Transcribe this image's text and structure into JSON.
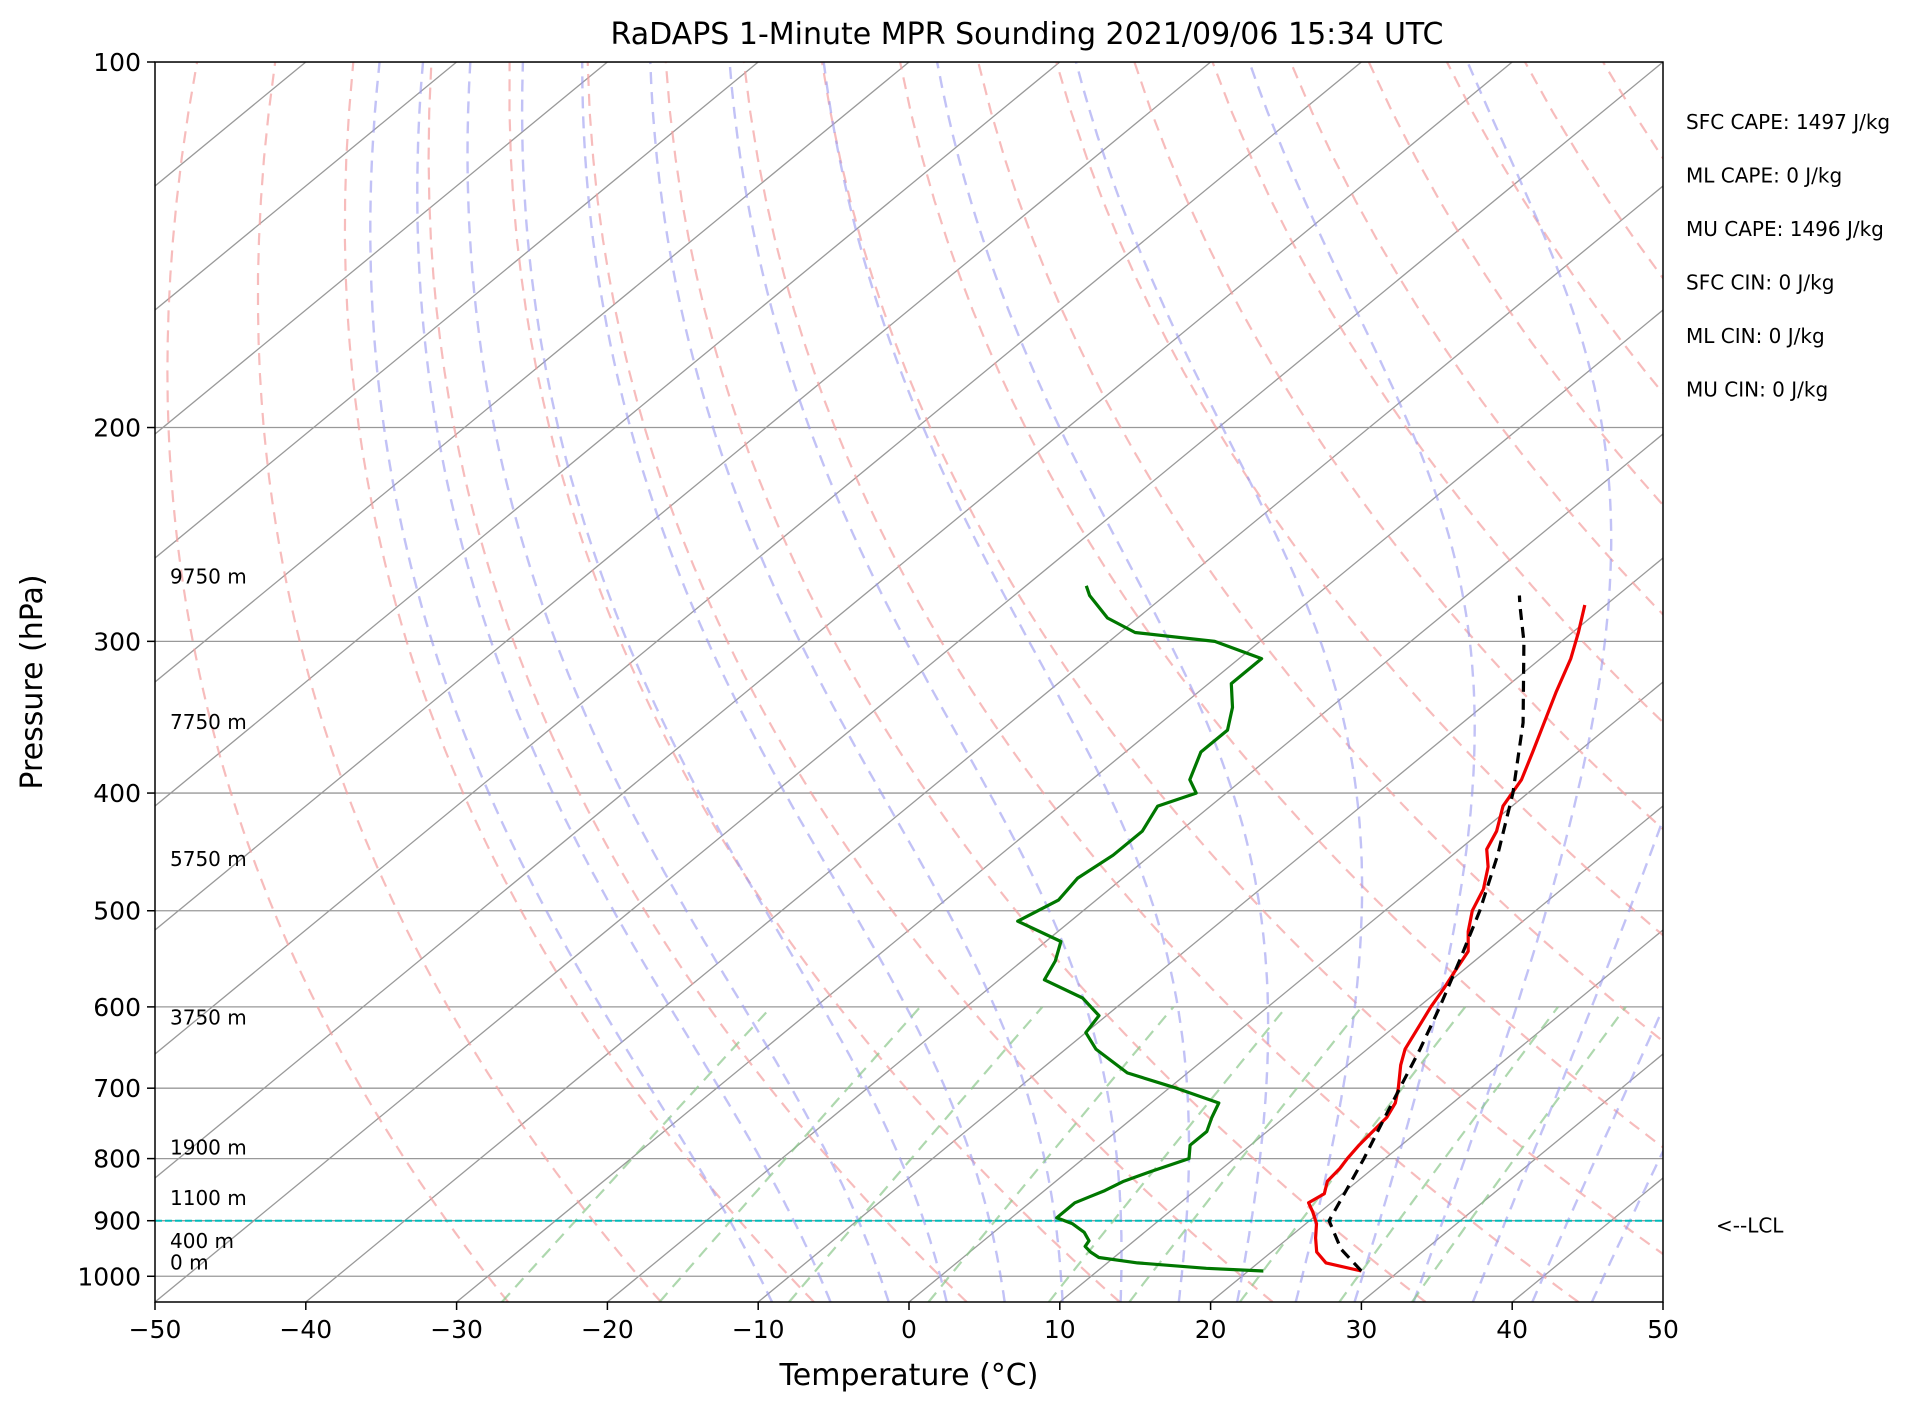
{
  "chart_data": {
    "type": "line",
    "title": "RaDAPS 1-Minute MPR Sounding 2021/09/06 15:34 UTC",
    "xlabel": "Temperature (°C)",
    "ylabel": "Pressure (hPa)",
    "xlim": [
      -50,
      50
    ],
    "ylim": [
      1050,
      100
    ],
    "y_scale": "log",
    "x_ticks": [
      "−50",
      "−40",
      "−30",
      "−20",
      "−10",
      "0",
      "10",
      "20",
      "30",
      "40",
      "50"
    ],
    "y_ticks": [
      "100",
      "200",
      "300",
      "400",
      "500",
      "600",
      "700",
      "800",
      "900",
      "1000"
    ],
    "grid": true,
    "skew_lines_color": "#999999",
    "dry_adiabat_color": "#f4a0a0",
    "moist_adiabat_color": "#9a9af0",
    "mixing_ratio_color": "#8cc88c",
    "series": [
      {
        "color": "#ee0000",
        "points": [
          {
            "p": 990,
            "t": 27.5
          },
          {
            "p": 975,
            "t": 24.5
          },
          {
            "p": 955,
            "t": 23.0
          },
          {
            "p": 930,
            "t": 21.8
          },
          {
            "p": 905,
            "t": 20.7
          },
          {
            "p": 885,
            "t": 19.5
          },
          {
            "p": 870,
            "t": 18.5
          },
          {
            "p": 855,
            "t": 18.8
          },
          {
            "p": 835,
            "t": 18.0
          },
          {
            "p": 815,
            "t": 17.8
          },
          {
            "p": 800,
            "t": 17.5
          },
          {
            "p": 780,
            "t": 17.2
          },
          {
            "p": 760,
            "t": 17.0
          },
          {
            "p": 740,
            "t": 16.8
          },
          {
            "p": 720,
            "t": 16.2
          },
          {
            "p": 700,
            "t": 15.2
          },
          {
            "p": 670,
            "t": 13.5
          },
          {
            "p": 650,
            "t": 12.5
          },
          {
            "p": 620,
            "t": 11.5
          },
          {
            "p": 600,
            "t": 10.8
          },
          {
            "p": 580,
            "t": 10.2
          },
          {
            "p": 560,
            "t": 9.5
          },
          {
            "p": 540,
            "t": 8.8
          },
          {
            "p": 520,
            "t": 7.2
          },
          {
            "p": 500,
            "t": 5.8
          },
          {
            "p": 480,
            "t": 4.8
          },
          {
            "p": 460,
            "t": 3.3
          },
          {
            "p": 445,
            "t": 1.8
          },
          {
            "p": 430,
            "t": 1.0
          },
          {
            "p": 410,
            "t": -0.6
          },
          {
            "p": 390,
            "t": -1.5
          },
          {
            "p": 370,
            "t": -3.0
          },
          {
            "p": 350,
            "t": -4.6
          },
          {
            "p": 330,
            "t": -6.3
          },
          {
            "p": 310,
            "t": -8.0
          },
          {
            "p": 295,
            "t": -9.6
          },
          {
            "p": 280,
            "t": -11.4
          }
        ]
      },
      {
        "color": "#007700",
        "points": [
          {
            "p": 990,
            "t": 21.0
          },
          {
            "p": 985,
            "t": 17.0
          },
          {
            "p": 975,
            "t": 12.0
          },
          {
            "p": 965,
            "t": 9.0
          },
          {
            "p": 955,
            "t": 8.0
          },
          {
            "p": 945,
            "t": 7.2
          },
          {
            "p": 935,
            "t": 7.0
          },
          {
            "p": 920,
            "t": 6.0
          },
          {
            "p": 905,
            "t": 4.5
          },
          {
            "p": 895,
            "t": 3.0
          },
          {
            "p": 880,
            "t": 3.0
          },
          {
            "p": 870,
            "t": 3.0
          },
          {
            "p": 860,
            "t": 3.5
          },
          {
            "p": 850,
            "t": 4.0
          },
          {
            "p": 835,
            "t": 4.5
          },
          {
            "p": 820,
            "t": 5.5
          },
          {
            "p": 800,
            "t": 7.0
          },
          {
            "p": 780,
            "t": 6.0
          },
          {
            "p": 760,
            "t": 6.0
          },
          {
            "p": 740,
            "t": 5.2
          },
          {
            "p": 720,
            "t": 4.5
          },
          {
            "p": 700,
            "t": 0.5
          },
          {
            "p": 680,
            "t": -4.0
          },
          {
            "p": 650,
            "t": -8.0
          },
          {
            "p": 630,
            "t": -10.0
          },
          {
            "p": 610,
            "t": -10.5
          },
          {
            "p": 590,
            "t": -13.0
          },
          {
            "p": 570,
            "t": -17.0
          },
          {
            "p": 550,
            "t": -17.8
          },
          {
            "p": 530,
            "t": -19.0
          },
          {
            "p": 510,
            "t": -23.5
          },
          {
            "p": 490,
            "t": -22.5
          },
          {
            "p": 470,
            "t": -23.0
          },
          {
            "p": 450,
            "t": -22.5
          },
          {
            "p": 430,
            "t": -22.5
          },
          {
            "p": 410,
            "t": -23.5
          },
          {
            "p": 400,
            "t": -22.0
          },
          {
            "p": 390,
            "t": -23.5
          },
          {
            "p": 370,
            "t": -25.0
          },
          {
            "p": 355,
            "t": -25.0
          },
          {
            "p": 340,
            "t": -26.5
          },
          {
            "p": 325,
            "t": -28.5
          },
          {
            "p": 310,
            "t": -28.5
          },
          {
            "p": 300,
            "t": -33.0
          },
          {
            "p": 295,
            "t": -39.0
          },
          {
            "p": 287,
            "t": -42.0
          },
          {
            "p": 275,
            "t": -45.0
          },
          {
            "p": 270,
            "t": -46.0
          }
        ]
      },
      {
        "color": "#000000",
        "dashed": true,
        "points": [
          {
            "p": 990,
            "t": 27.5
          },
          {
            "p": 950,
            "t": 24.4
          },
          {
            "p": 900,
            "t": 21.3
          },
          {
            "p": 850,
            "t": 20.0
          },
          {
            "p": 800,
            "t": 18.6
          },
          {
            "p": 750,
            "t": 17.0
          },
          {
            "p": 700,
            "t": 15.3
          },
          {
            "p": 650,
            "t": 13.5
          },
          {
            "p": 600,
            "t": 11.4
          },
          {
            "p": 550,
            "t": 9.0
          },
          {
            "p": 500,
            "t": 6.3
          },
          {
            "p": 450,
            "t": 3.0
          },
          {
            "p": 400,
            "t": -1.0
          },
          {
            "p": 350,
            "t": -6.0
          },
          {
            "p": 300,
            "t": -12.5
          },
          {
            "p": 280,
            "t": -15.7
          },
          {
            "p": 275,
            "t": -16.5
          }
        ]
      }
    ],
    "lcl": {
      "pressure": 900,
      "label": "<--LCL",
      "color": "#00bbbb"
    },
    "height_labels": [
      {
        "text": "9750 m",
        "p": 271
      },
      {
        "text": "7750 m",
        "p": 357
      },
      {
        "text": "5750 m",
        "p": 463
      },
      {
        "text": "3750 m",
        "p": 625
      },
      {
        "text": "1900 m",
        "p": 800
      },
      {
        "text": "1100 m",
        "p": 880
      },
      {
        "text": "400 m",
        "p": 955
      },
      {
        "text": "0 m",
        "p": 995
      }
    ],
    "indices": [
      "SFC CAPE: 1497 J/kg",
      "ML CAPE: 0 J/kg",
      "MU CAPE: 1496 J/kg",
      "SFC CIN: 0 J/kg",
      "ML CIN: 0 J/kg",
      "MU CIN: 0 J/kg"
    ]
  }
}
